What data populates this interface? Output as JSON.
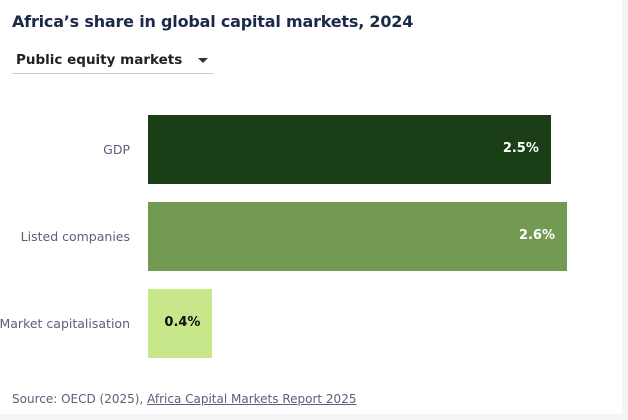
{
  "header": {
    "title": "Africa’s share in global capital markets, 2024"
  },
  "dropdown": {
    "selected": "Public equity markets",
    "icon": "caret-down-icon"
  },
  "chart_data": {
    "type": "bar",
    "orientation": "horizontal",
    "categories": [
      "GDP",
      "Listed companies",
      "Market capitalisation"
    ],
    "values": [
      2.5,
      2.6,
      0.4
    ],
    "labels": [
      "2.5%",
      "2.6%",
      "0.4%"
    ],
    "colors": [
      "#1a3f16",
      "#739a52",
      "#c8e68a"
    ],
    "label_colors": [
      "#ffffff",
      "#ffffff",
      "#111111"
    ],
    "xlim": [
      0,
      2.6
    ],
    "grid": false
  },
  "footer": {
    "source_prefix": "Source: OECD (2025), ",
    "source_link": "Africa Capital Markets Report 2025"
  }
}
